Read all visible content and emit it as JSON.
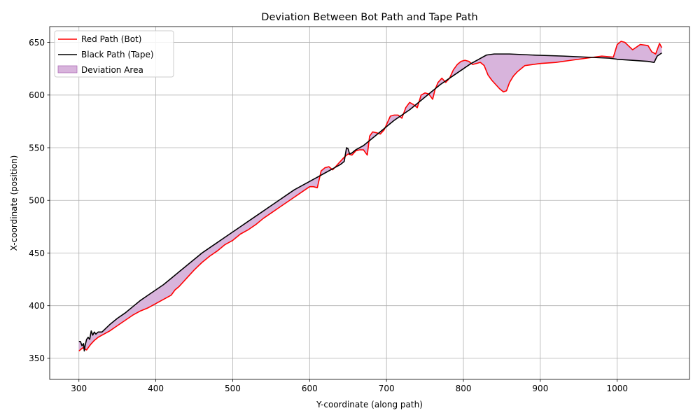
{
  "chart_data": {
    "type": "line",
    "title": "Deviation Between Bot Path and Tape Path",
    "xlabel": "Y-coordinate (along path)",
    "ylabel": "X-coordinate (position)",
    "xlim": [
      262,
      1094
    ],
    "ylim": [
      330,
      665
    ],
    "xticks": [
      300,
      400,
      500,
      600,
      700,
      800,
      900,
      1000
    ],
    "yticks": [
      350,
      400,
      450,
      500,
      550,
      600,
      650
    ],
    "grid": true,
    "legend_position": "upper-left",
    "colors": {
      "bot": "#ff0000",
      "tape": "#000000",
      "fill": "#d8b4dc",
      "fill_edge": "#b070b8"
    },
    "series": [
      {
        "name": "Red Path (Bot)",
        "x": [
          300,
          305,
          310,
          315,
          320,
          325,
          330,
          340,
          350,
          360,
          370,
          380,
          390,
          400,
          410,
          420,
          425,
          430,
          440,
          450,
          460,
          470,
          480,
          490,
          500,
          510,
          520,
          530,
          540,
          550,
          560,
          570,
          580,
          590,
          600,
          605,
          610,
          615,
          620,
          625,
          630,
          640,
          645,
          650,
          655,
          660,
          665,
          670,
          675,
          678,
          682,
          688,
          692,
          697,
          700,
          705,
          710,
          715,
          720,
          725,
          730,
          735,
          740,
          745,
          750,
          755,
          760,
          763,
          767,
          772,
          777,
          782,
          787,
          792,
          797,
          802,
          807,
          812,
          817,
          822,
          827,
          832,
          837,
          842,
          847,
          852,
          856,
          860,
          865,
          870,
          875,
          880,
          890,
          900,
          920,
          940,
          960,
          980,
          995,
          1000,
          1005,
          1010,
          1020,
          1030,
          1040,
          1045,
          1050,
          1055,
          1058
        ],
        "y": [
          357,
          360,
          358,
          363,
          367,
          370,
          372,
          376,
          381,
          386,
          391,
          395,
          398,
          402,
          406,
          410,
          415,
          418,
          426,
          434,
          441,
          447,
          452,
          458,
          462,
          468,
          472,
          477,
          483,
          488,
          493,
          498,
          503,
          508,
          513,
          513,
          512,
          528,
          531,
          532,
          529,
          537,
          541,
          544,
          543,
          547,
          548,
          548,
          543,
          561,
          565,
          564,
          563,
          567,
          572,
          580,
          581,
          581,
          578,
          588,
          593,
          591,
          588,
          600,
          602,
          601,
          596,
          605,
          612,
          616,
          612,
          616,
          624,
          629,
          632,
          633,
          632,
          629,
          630,
          631,
          628,
          619,
          614,
          610,
          606,
          603,
          604,
          612,
          618,
          622,
          625,
          628,
          629,
          630,
          631,
          633,
          635,
          637,
          636,
          648,
          651,
          650,
          643,
          648,
          647,
          641,
          639,
          649,
          645
        ]
      },
      {
        "name": "Black Path (Tape)",
        "x": [
          300,
          302,
          304,
          306,
          307,
          308,
          310,
          312,
          314,
          316,
          318,
          320,
          322,
          325,
          330,
          340,
          350,
          360,
          370,
          380,
          390,
          400,
          410,
          420,
          430,
          440,
          450,
          460,
          470,
          480,
          490,
          500,
          510,
          520,
          530,
          540,
          550,
          560,
          570,
          580,
          590,
          600,
          610,
          620,
          630,
          640,
          645,
          648,
          650,
          652,
          655,
          660,
          670,
          680,
          690,
          700,
          710,
          720,
          730,
          740,
          750,
          760,
          770,
          780,
          790,
          800,
          810,
          820,
          830,
          840,
          860,
          890,
          930,
          960,
          990,
          1000,
          1020,
          1040,
          1048,
          1052,
          1058
        ],
        "y": [
          366,
          366,
          362,
          364,
          357,
          362,
          368,
          370,
          368,
          376,
          372,
          375,
          373,
          375,
          375,
          382,
          388,
          393,
          399,
          405,
          410,
          415,
          420,
          426,
          432,
          438,
          444,
          450,
          455,
          460,
          465,
          470,
          475,
          480,
          485,
          490,
          495,
          500,
          505,
          510,
          514,
          518,
          522,
          526,
          530,
          534,
          537,
          550,
          549,
          544,
          545,
          548,
          552,
          558,
          564,
          570,
          576,
          581,
          586,
          592,
          598,
          604,
          610,
          615,
          620,
          625,
          630,
          634,
          638,
          639,
          639,
          638,
          637,
          636,
          635,
          634,
          633,
          632,
          631,
          637,
          640
        ]
      }
    ],
    "fill_name": "Deviation Area"
  }
}
